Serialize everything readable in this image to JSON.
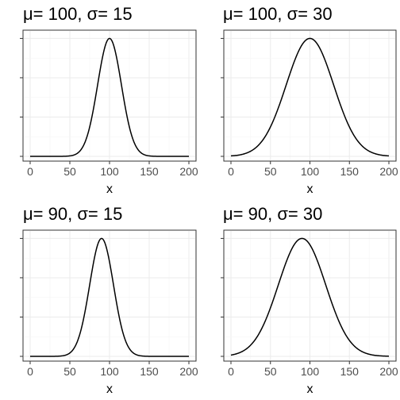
{
  "chart_data": [
    {
      "type": "line",
      "title": "μ= 100, σ= 15",
      "mu": 100,
      "sigma": 15,
      "xlabel": "x",
      "ylabel": "",
      "xlim": [
        0,
        200
      ],
      "xticks": [
        0,
        50,
        100,
        150,
        200
      ],
      "y_tick_labels_shown": false,
      "grid": true,
      "series": [
        {
          "curve": "normal density"
        }
      ]
    },
    {
      "type": "line",
      "title": "μ= 100, σ= 30",
      "mu": 100,
      "sigma": 30,
      "xlabel": "x",
      "ylabel": "",
      "xlim": [
        0,
        200
      ],
      "xticks": [
        0,
        50,
        100,
        150,
        200
      ],
      "y_tick_labels_shown": false,
      "grid": true,
      "series": [
        {
          "curve": "normal density"
        }
      ]
    },
    {
      "type": "line",
      "title": "μ= 90, σ= 15",
      "mu": 90,
      "sigma": 15,
      "xlabel": "x",
      "ylabel": "",
      "xlim": [
        0,
        200
      ],
      "xticks": [
        0,
        50,
        100,
        150,
        200
      ],
      "y_tick_labels_shown": false,
      "grid": true,
      "series": [
        {
          "curve": "normal density"
        }
      ]
    },
    {
      "type": "line",
      "title": "μ= 90, σ= 30",
      "mu": 90,
      "sigma": 30,
      "xlabel": "x",
      "ylabel": "",
      "xlim": [
        0,
        200
      ],
      "xticks": [
        0,
        50,
        100,
        150,
        200
      ],
      "y_tick_labels_shown": false,
      "grid": true,
      "series": [
        {
          "curve": "normal density"
        }
      ]
    }
  ]
}
